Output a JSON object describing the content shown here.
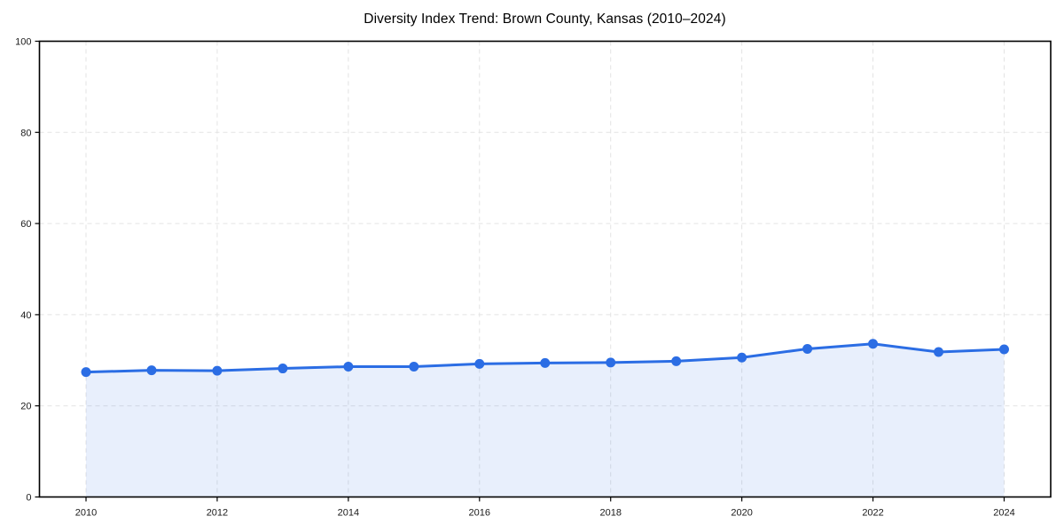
{
  "page": {
    "background_color": "#ffffff"
  },
  "chart_data": {
    "type": "line",
    "title": "Diversity Index Trend: Brown County, Kansas (2010–2024)",
    "series_name": "Diversity Index",
    "x": [
      2010,
      2011,
      2012,
      2013,
      2014,
      2015,
      2016,
      2017,
      2018,
      2019,
      2020,
      2021,
      2022,
      2023,
      2024
    ],
    "values": [
      27.4,
      27.8,
      27.7,
      28.2,
      28.6,
      28.6,
      29.2,
      29.4,
      29.5,
      29.8,
      30.6,
      32.5,
      33.6,
      31.8,
      32.4
    ],
    "xlabel": "",
    "ylabel": "",
    "xlim": [
      2009.29,
      2024.71
    ],
    "ylim": [
      0,
      100
    ],
    "xticks": [
      2010,
      2012,
      2014,
      2016,
      2018,
      2020,
      2022,
      2024
    ],
    "yticks": [
      0,
      20,
      40,
      60,
      80,
      100
    ],
    "grid": {
      "visible": true,
      "style": "dashed",
      "color": "#e3e3e3",
      "dash": "5,4"
    },
    "line": {
      "color": "#2b6de4",
      "width": 3,
      "marker": "circle",
      "marker_radius": 5.5
    },
    "area_fill": "rgba(43,109,228,0.11)",
    "fill_to_zero": true,
    "spine_color": "#000000",
    "spine_width": 1.6,
    "tick_length": 5,
    "tick_label_color": "#1a1a1a",
    "tick_label_size": 11,
    "title_color": "#000000",
    "legend": {
      "visible": false
    }
  }
}
